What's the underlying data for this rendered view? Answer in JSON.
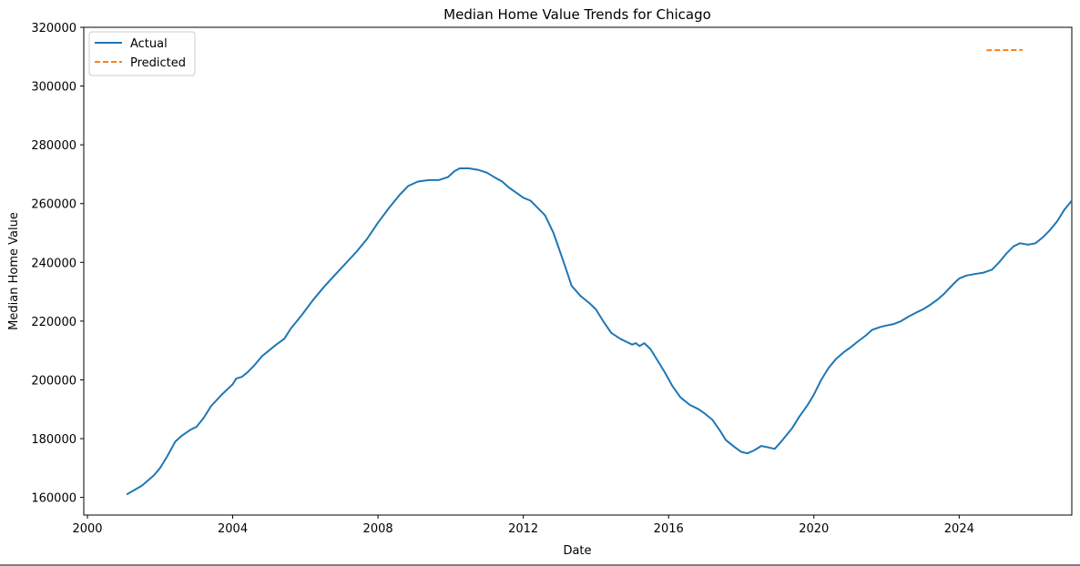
{
  "chart_data": {
    "type": "line",
    "title": "Median Home Value Trends for Chicago",
    "xlabel": "Date",
    "ylabel": "Median Home Value",
    "xlim": [
      1999.9,
      2027.1
    ],
    "ylim": [
      154000,
      320000
    ],
    "xticks": [
      2000,
      2004,
      2008,
      2012,
      2016,
      2020,
      2024
    ],
    "xtick_labels": [
      "2000",
      "2004",
      "2008",
      "2012",
      "2016",
      "2020",
      "2024"
    ],
    "yticks": [
      160000,
      180000,
      200000,
      220000,
      240000,
      260000,
      280000,
      300000,
      320000
    ],
    "ytick_labels": [
      "160000",
      "180000",
      "200000",
      "220000",
      "240000",
      "260000",
      "280000",
      "300000",
      "320000"
    ],
    "grid": false,
    "legend": {
      "placement": "top-left",
      "entries": [
        "Actual",
        "Predicted"
      ]
    },
    "series": [
      {
        "name": "Actual",
        "color": "#1f77b4",
        "style": "solid",
        "points": [
          [
            2001.08,
            161000
          ],
          [
            2001.5,
            164000
          ],
          [
            2001.83,
            167500
          ],
          [
            2002.0,
            170000
          ],
          [
            2002.2,
            174000
          ],
          [
            2002.42,
            179000
          ],
          [
            2002.6,
            181000
          ],
          [
            2002.83,
            183000
          ],
          [
            2003.0,
            184000
          ],
          [
            2003.2,
            187000
          ],
          [
            2003.4,
            191000
          ],
          [
            2003.7,
            195000
          ],
          [
            2004.0,
            198500
          ],
          [
            2004.1,
            200500
          ],
          [
            2004.25,
            201000
          ],
          [
            2004.4,
            202500
          ],
          [
            2004.6,
            205000
          ],
          [
            2004.8,
            208000
          ],
          [
            2005.0,
            210000
          ],
          [
            2005.2,
            212000
          ],
          [
            2005.42,
            214000
          ],
          [
            2005.6,
            217500
          ],
          [
            2005.9,
            222000
          ],
          [
            2006.2,
            227000
          ],
          [
            2006.5,
            231500
          ],
          [
            2006.8,
            235500
          ],
          [
            2007.1,
            239500
          ],
          [
            2007.4,
            243500
          ],
          [
            2007.7,
            248000
          ],
          [
            2008.0,
            253500
          ],
          [
            2008.3,
            258500
          ],
          [
            2008.6,
            263000
          ],
          [
            2008.83,
            266000
          ],
          [
            2009.1,
            267500
          ],
          [
            2009.4,
            268000
          ],
          [
            2009.67,
            268000
          ],
          [
            2009.92,
            269000
          ],
          [
            2010.1,
            271000
          ],
          [
            2010.25,
            272000
          ],
          [
            2010.5,
            272000
          ],
          [
            2010.75,
            271500
          ],
          [
            2011.0,
            270500
          ],
          [
            2011.2,
            269000
          ],
          [
            2011.42,
            267500
          ],
          [
            2011.6,
            265500
          ],
          [
            2011.83,
            263500
          ],
          [
            2012.0,
            262000
          ],
          [
            2012.2,
            261000
          ],
          [
            2012.4,
            258500
          ],
          [
            2012.6,
            256000
          ],
          [
            2012.83,
            250000
          ],
          [
            2013.0,
            244000
          ],
          [
            2013.17,
            238000
          ],
          [
            2013.33,
            232000
          ],
          [
            2013.58,
            228500
          ],
          [
            2013.83,
            226000
          ],
          [
            2014.0,
            224000
          ],
          [
            2014.2,
            220000
          ],
          [
            2014.42,
            216000
          ],
          [
            2014.67,
            214000
          ],
          [
            2014.83,
            213000
          ],
          [
            2015.0,
            212000
          ],
          [
            2015.1,
            212500
          ],
          [
            2015.2,
            211500
          ],
          [
            2015.33,
            212500
          ],
          [
            2015.5,
            210500
          ],
          [
            2015.7,
            206500
          ],
          [
            2015.9,
            202500
          ],
          [
            2016.1,
            198000
          ],
          [
            2016.33,
            194000
          ],
          [
            2016.58,
            191500
          ],
          [
            2016.83,
            190000
          ],
          [
            2017.0,
            188500
          ],
          [
            2017.2,
            186500
          ],
          [
            2017.4,
            183000
          ],
          [
            2017.58,
            179500
          ],
          [
            2017.83,
            177000
          ],
          [
            2018.0,
            175500
          ],
          [
            2018.17,
            175000
          ],
          [
            2018.35,
            176000
          ],
          [
            2018.55,
            177500
          ],
          [
            2018.75,
            177000
          ],
          [
            2018.92,
            176500
          ],
          [
            2019.1,
            179000
          ],
          [
            2019.4,
            183500
          ],
          [
            2019.6,
            187500
          ],
          [
            2019.83,
            191500
          ],
          [
            2020.0,
            195000
          ],
          [
            2020.2,
            200000
          ],
          [
            2020.4,
            204000
          ],
          [
            2020.6,
            207000
          ],
          [
            2020.83,
            209500
          ],
          [
            2021.0,
            211000
          ],
          [
            2021.2,
            213000
          ],
          [
            2021.42,
            215000
          ],
          [
            2021.6,
            217000
          ],
          [
            2021.83,
            218000
          ],
          [
            2022.0,
            218500
          ],
          [
            2022.2,
            219000
          ],
          [
            2022.4,
            220000
          ],
          [
            2022.6,
            221500
          ],
          [
            2022.83,
            223000
          ],
          [
            2023.0,
            224000
          ],
          [
            2023.2,
            225500
          ],
          [
            2023.42,
            227500
          ],
          [
            2023.6,
            229500
          ],
          [
            2023.83,
            232500
          ],
          [
            2024.0,
            234500
          ],
          [
            2024.2,
            235500
          ],
          [
            2024.42,
            236000
          ],
          [
            2024.67,
            236500
          ],
          [
            2024.9,
            237500
          ],
          [
            2025.1,
            240000
          ],
          [
            2025.3,
            243000
          ],
          [
            2025.5,
            245500
          ],
          [
            2025.67,
            246500
          ],
          [
            2025.9,
            246000
          ],
          [
            2026.1,
            246500
          ],
          [
            2026.3,
            248500
          ],
          [
            2026.5,
            251000
          ],
          [
            2026.7,
            254000
          ],
          [
            2026.9,
            258000
          ],
          [
            2027.1,
            261000
          ]
        ]
      },
      {
        "name": "Predicted",
        "color": "#ff7f0e",
        "style": "dashed",
        "points": [
          [
            2024.75,
            312200
          ],
          [
            2025.75,
            312300
          ]
        ]
      }
    ]
  }
}
